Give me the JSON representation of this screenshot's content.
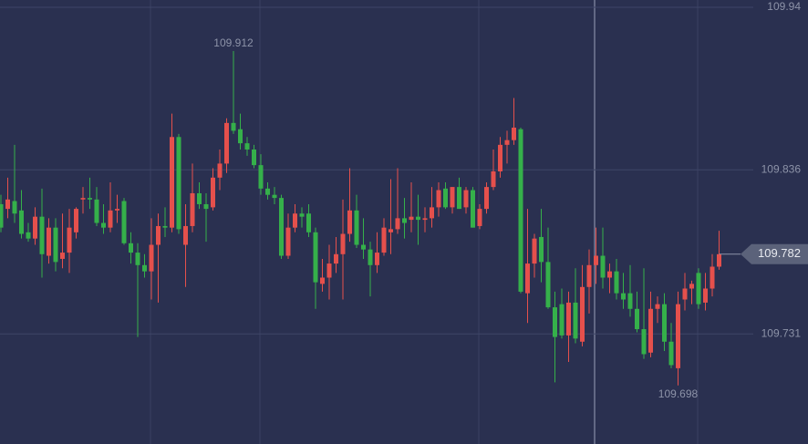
{
  "chart_data": {
    "type": "candlestick",
    "open": [
      109.814,
      109.811,
      109.816,
      109.81,
      109.796,
      109.792,
      109.806,
      109.781,
      109.799,
      109.779,
      109.783,
      109.796,
      109.817,
      109.818,
      109.817,
      109.802,
      109.799,
      109.81,
      109.816,
      109.789,
      109.783,
      109.775,
      109.771,
      109.788,
      109.8,
      109.799,
      109.857,
      109.788,
      109.8,
      109.821,
      109.814,
      109.812,
      109.831,
      109.84,
      109.866,
      109.862,
      109.853,
      109.849,
      109.839,
      109.824,
      109.82,
      109.818,
      109.781,
      109.799,
      109.808,
      109.808,
      109.796,
      109.763,
      109.767,
      109.776,
      109.782,
      109.795,
      109.81,
      109.788,
      109.785,
      109.775,
      109.783,
      109.796,
      109.798,
      109.805,
      109.804,
      109.806,
      109.804,
      109.805,
      109.812,
      109.824,
      109.812,
      109.825,
      109.812,
      109.823,
      109.8,
      109.811,
      109.825,
      109.835,
      109.852,
      109.855,
      109.862,
      109.757,
      109.776,
      109.793,
      109.777,
      109.748,
      109.75,
      109.73,
      109.751,
      109.726,
      109.761,
      109.775,
      109.781,
      109.767,
      109.771,
      109.757,
      109.757,
      109.747,
      109.734,
      109.719,
      109.747,
      109.75,
      109.726,
      109.709,
      109.753,
      109.76,
      109.77,
      109.751,
      109.76,
      109.774
    ],
    "high": [
      109.82,
      109.831,
      109.852,
      109.823,
      109.802,
      109.812,
      109.824,
      109.805,
      109.805,
      109.808,
      109.811,
      109.812,
      109.825,
      109.831,
      109.825,
      109.814,
      109.828,
      109.82,
      109.818,
      109.796,
      109.789,
      109.782,
      109.805,
      109.808,
      109.812,
      109.872,
      109.859,
      109.814,
      109.84,
      109.828,
      109.821,
      109.837,
      109.849,
      109.869,
      109.912,
      109.872,
      109.857,
      109.852,
      109.846,
      109.828,
      109.825,
      109.82,
      109.808,
      109.814,
      109.812,
      109.814,
      109.799,
      109.779,
      109.788,
      109.793,
      109.817,
      109.837,
      109.82,
      109.805,
      109.79,
      109.796,
      109.805,
      109.83,
      109.837,
      109.818,
      109.828,
      109.82,
      109.812,
      109.825,
      109.828,
      109.828,
      109.825,
      109.831,
      109.825,
      109.825,
      109.814,
      109.828,
      109.849,
      109.857,
      109.861,
      109.882,
      109.863,
      109.811,
      109.795,
      109.811,
      109.799,
      109.758,
      109.76,
      109.758,
      109.773,
      109.775,
      109.785,
      109.799,
      109.799,
      109.776,
      109.779,
      109.77,
      109.775,
      109.758,
      109.773,
      109.758,
      109.755,
      109.757,
      109.738,
      109.758,
      109.77,
      109.765,
      109.773,
      109.77,
      109.782,
      109.797
    ],
    "low": [
      109.796,
      109.805,
      109.802,
      109.792,
      109.79,
      109.788,
      109.767,
      109.776,
      109.771,
      109.773,
      109.77,
      109.792,
      109.808,
      109.811,
      109.8,
      109.795,
      109.796,
      109.802,
      109.788,
      109.776,
      109.729,
      109.767,
      109.753,
      109.751,
      109.793,
      109.796,
      109.795,
      109.761,
      109.796,
      109.811,
      109.79,
      109.81,
      109.823,
      109.834,
      109.859,
      109.849,
      109.845,
      109.837,
      109.82,
      109.817,
      109.814,
      109.779,
      109.779,
      109.796,
      109.799,
      109.793,
      109.747,
      109.758,
      109.753,
      109.77,
      109.753,
      109.79,
      109.786,
      109.779,
      109.755,
      109.77,
      109.781,
      109.782,
      109.795,
      109.792,
      109.796,
      109.788,
      109.796,
      109.799,
      109.806,
      109.811,
      109.808,
      109.811,
      109.808,
      109.799,
      109.798,
      109.808,
      109.823,
      109.831,
      109.84,
      109.852,
      109.757,
      109.738,
      109.767,
      109.764,
      109.747,
      109.7,
      109.728,
      109.713,
      109.725,
      109.723,
      109.744,
      109.763,
      109.76,
      109.757,
      109.753,
      109.747,
      109.742,
      109.732,
      109.715,
      109.716,
      109.738,
      109.72,
      109.709,
      109.698,
      109.746,
      109.75,
      109.747,
      109.746,
      109.755,
      109.772
    ],
    "close": [
      109.799,
      109.817,
      109.808,
      109.795,
      109.792,
      109.806,
      109.782,
      109.799,
      109.777,
      109.783,
      109.799,
      109.811,
      109.818,
      109.817,
      109.802,
      109.799,
      109.81,
      109.811,
      109.789,
      109.783,
      109.775,
      109.771,
      109.788,
      109.8,
      109.799,
      109.857,
      109.798,
      109.8,
      109.821,
      109.814,
      109.811,
      109.831,
      109.84,
      109.866,
      109.861,
      109.853,
      109.849,
      109.839,
      109.824,
      109.82,
      109.818,
      109.781,
      109.799,
      109.808,
      109.806,
      109.796,
      109.764,
      109.767,
      109.776,
      109.782,
      109.795,
      109.81,
      109.788,
      109.785,
      109.775,
      109.783,
      109.799,
      109.798,
      109.805,
      109.802,
      109.806,
      109.804,
      109.805,
      109.812,
      109.823,
      109.812,
      109.825,
      109.811,
      109.823,
      109.799,
      109.811,
      109.825,
      109.835,
      109.852,
      109.855,
      109.863,
      109.758,
      109.776,
      109.792,
      109.777,
      109.748,
      109.729,
      109.73,
      109.751,
      109.728,
      109.761,
      109.775,
      109.781,
      109.767,
      109.771,
      109.757,
      109.753,
      109.747,
      109.734,
      109.718,
      109.747,
      109.75,
      109.726,
      109.711,
      109.75,
      109.76,
      109.763,
      109.75,
      109.76,
      109.774,
      109.782
    ],
    "up_color": "#e5504c",
    "down_color": "#35b04a",
    "ylim": [
      109.6605,
      109.9447
    ],
    "yticks": [
      109.94,
      109.836,
      109.731
    ],
    "grid": true,
    "max_label": 109.912,
    "min_label": 109.698,
    "last_price": 109.782
  }
}
